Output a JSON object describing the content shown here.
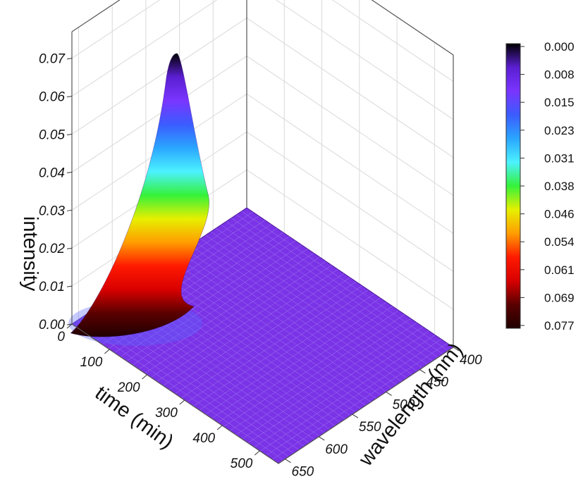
{
  "chart_data": {
    "type": "surface3d",
    "title": "",
    "xlabel": "time (min)",
    "ylabel": "wavelength (nm)",
    "zlabel": "intensity",
    "x_ticks": [
      "0",
      "100",
      "200",
      "300",
      "400",
      "500"
    ],
    "y_ticks": [
      "400",
      "450",
      "500",
      "550",
      "600",
      "650"
    ],
    "z_ticks": [
      "0.00",
      "0.01",
      "0.02",
      "0.03",
      "0.04",
      "0.05",
      "0.06",
      "0.07"
    ],
    "xlim": [
      0,
      550
    ],
    "ylim": [
      400,
      660
    ],
    "zlim": [
      0,
      0.077
    ],
    "grid": true,
    "peak": {
      "time": 20,
      "wavelength": 650,
      "intensity": 0.077
    },
    "colorbar": {
      "labels": [
        "0.000",
        "0.008",
        "0.015",
        "0.023",
        "0.031",
        "0.038",
        "0.046",
        "0.054",
        "0.061",
        "0.069",
        "0.077"
      ],
      "colormap": [
        "#000000",
        "#5b1fd1",
        "#7a35ff",
        "#3b5cff",
        "#2aa6ff",
        "#4cf2ff",
        "#35f23a",
        "#e6f000",
        "#ff9d00",
        "#ff1a00",
        "#d80000",
        "#5a0000",
        "#200000"
      ]
    },
    "surface_base_color": "#7a33e6"
  }
}
